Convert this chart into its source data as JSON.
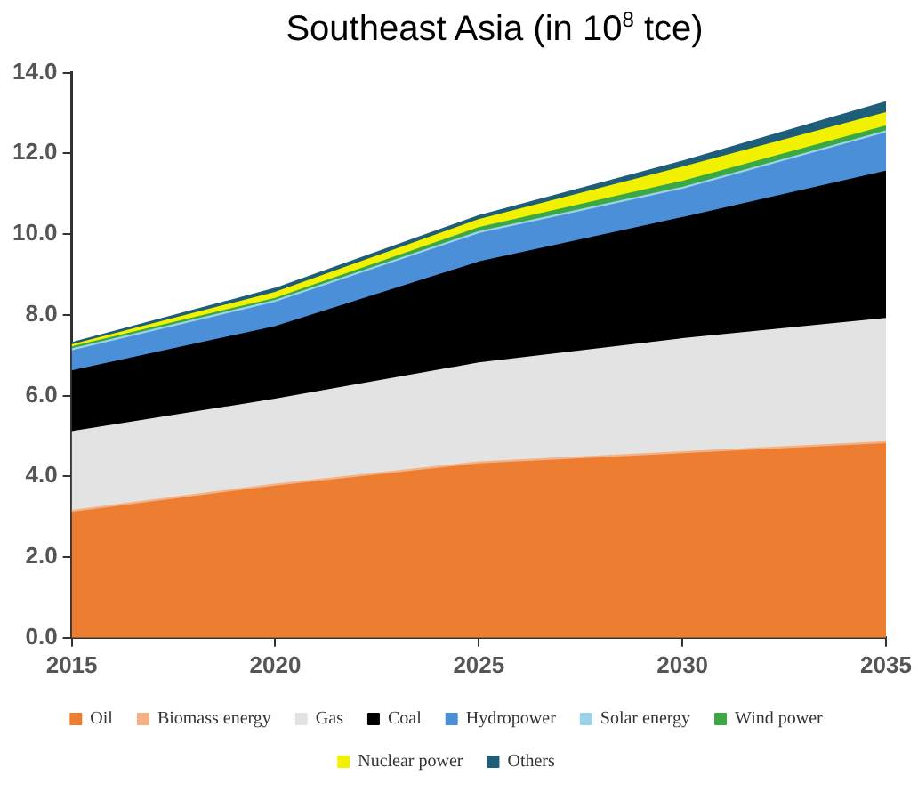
{
  "chart_data": {
    "type": "area",
    "title": "Southeast Asia (in 10$^{8}$ tce)",
    "stacked": true,
    "x": [
      2015,
      2020,
      2025,
      2030,
      2035
    ],
    "xlim": [
      2015,
      2035
    ],
    "xticks": [
      2015,
      2020,
      2025,
      2030,
      2035
    ],
    "ylim": [
      0,
      14
    ],
    "yticks": [
      {
        "value": 0,
        "label": "0.0"
      },
      {
        "value": 2,
        "label": "2.0"
      },
      {
        "value": 4,
        "label": "4.0"
      },
      {
        "value": 6,
        "label": "6.0"
      },
      {
        "value": 8,
        "label": "8.0"
      },
      {
        "value": 10,
        "label": "10.0"
      },
      {
        "value": 12,
        "label": "12.0"
      },
      {
        "value": 14,
        "label": "14.0"
      }
    ],
    "grid": false,
    "legend": "bottom",
    "marker": "none",
    "series": [
      {
        "name": "Oil",
        "color": "#ed7d31",
        "values": [
          3.1,
          3.75,
          4.3,
          4.55,
          4.8
        ]
      },
      {
        "name": "Biomass energy",
        "color": "#f4b183",
        "values": [
          0.05,
          0.05,
          0.05,
          0.05,
          0.05
        ]
      },
      {
        "name": "Gas",
        "color": "#e3e3e3",
        "values": [
          1.95,
          2.1,
          2.45,
          2.8,
          3.05
        ]
      },
      {
        "name": "Coal",
        "color": "#000000",
        "values": [
          1.5,
          1.8,
          2.5,
          3.0,
          3.65
        ]
      },
      {
        "name": "Hydropower",
        "color": "#4a8fd8",
        "values": [
          0.5,
          0.6,
          0.7,
          0.7,
          0.95
        ]
      },
      {
        "name": "Solar energy",
        "color": "#9dd3e8",
        "values": [
          0.05,
          0.05,
          0.05,
          0.05,
          0.05
        ]
      },
      {
        "name": "Wind power",
        "color": "#3aa845",
        "values": [
          0.05,
          0.05,
          0.1,
          0.15,
          0.12
        ]
      },
      {
        "name": "Nuclear power",
        "color": "#f2f200",
        "values": [
          0.05,
          0.15,
          0.2,
          0.35,
          0.33
        ]
      },
      {
        "name": "Others",
        "color": "#1f5e78",
        "values": [
          0.05,
          0.1,
          0.1,
          0.15,
          0.27
        ]
      }
    ]
  }
}
